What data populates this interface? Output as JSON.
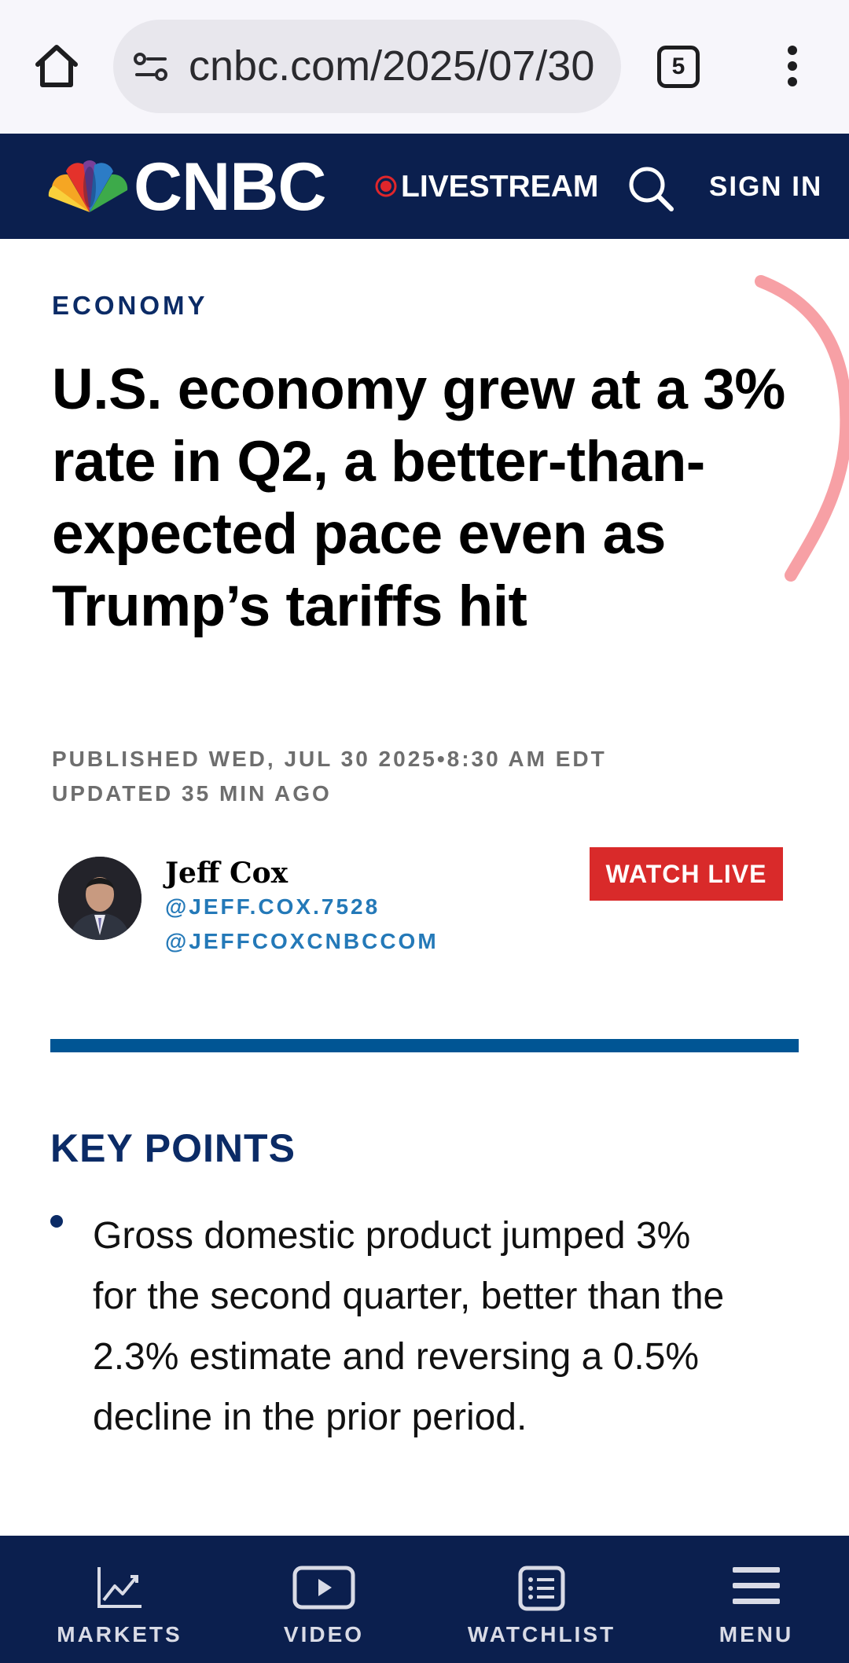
{
  "browser": {
    "url": "cnbc.com/2025/07/30",
    "tab_count": "5",
    "icons": {
      "home": "home-icon",
      "site_info": "site-settings-icon",
      "overflow": "vertical-dots-icon"
    }
  },
  "header": {
    "brand": "CNBC",
    "livestream_label": "LIVESTREAM",
    "signin_label": "SIGN IN",
    "colors": {
      "background": "#0b1f4e",
      "live_dot": "#e0262b"
    }
  },
  "article": {
    "section": "ECONOMY",
    "headline": "U.S. economy grew at a 3% rate in Q2, a better-than-expected pace even as Trump’s tariffs hit",
    "published": "PUBLISHED WED, JUL 30 2025•8:30 AM EDT",
    "updated": "UPDATED 35 MIN AGO",
    "author": {
      "name": "Jeff Cox",
      "handle_1": "@JEFF.COX.7528",
      "handle_2": "@JEFFCOXCNBCCOM"
    },
    "watch_live_label": "WATCH LIVE",
    "key_points_title": "KEY POINTS",
    "key_points": [
      "Gross domestic product jumped 3% for the second quarter, better than the 2.3% estimate and reversing a 0.5% decline in the prior period."
    ],
    "colors": {
      "accent": "#0b2b66",
      "link": "#2479b8",
      "divider": "#005594",
      "watch_live": "#d92a2a"
    }
  },
  "bottom_nav": {
    "items": [
      {
        "label": "MARKETS",
        "icon": "chart-line-icon"
      },
      {
        "label": "VIDEO",
        "icon": "play-icon"
      },
      {
        "label": "WATCHLIST",
        "icon": "list-icon"
      },
      {
        "label": "MENU",
        "icon": "hamburger-icon"
      }
    ]
  }
}
